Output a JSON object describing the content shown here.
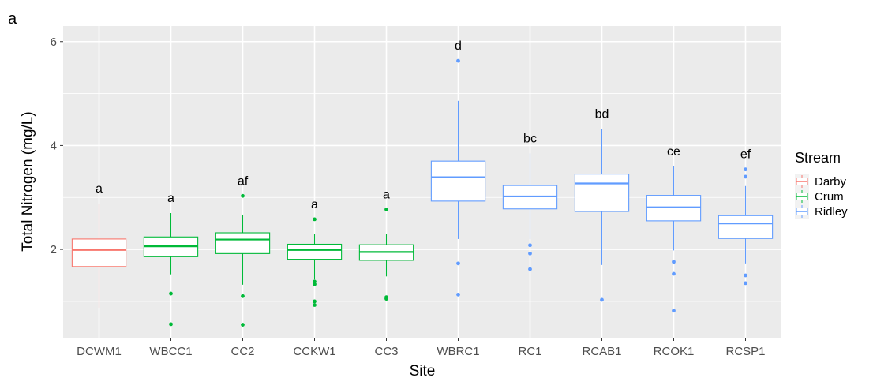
{
  "chart_data": {
    "type": "boxplot",
    "panel_tag": "a",
    "xlabel": "Site",
    "ylabel": "Total Nitrogen (mg/L)",
    "ylim": [
      0.3,
      6.3
    ],
    "yticks": [
      2,
      4,
      6
    ],
    "grid": true,
    "legend": {
      "title": "Stream",
      "placement": "right",
      "entries": [
        {
          "name": "Darby",
          "color": "#F8766D"
        },
        {
          "name": "Crum",
          "color": "#00BA38"
        },
        {
          "name": "Ridley",
          "color": "#619CFF"
        }
      ]
    },
    "categories": [
      "DCWM1",
      "WBCC1",
      "CC2",
      "CCKW1",
      "CC3",
      "WBRC1",
      "RC1",
      "RCAB1",
      "RCOK1",
      "RCSP1"
    ],
    "boxes": [
      {
        "site": "DCWM1",
        "stream": "Darby",
        "min": 0.88,
        "q1": 1.67,
        "median": 1.99,
        "q3": 2.2,
        "max": 2.88,
        "outliers": [],
        "letter": "a"
      },
      {
        "site": "WBCC1",
        "stream": "Crum",
        "min": 1.52,
        "q1": 1.86,
        "median": 2.06,
        "q3": 2.24,
        "max": 2.7,
        "outliers": [
          1.15,
          0.56
        ],
        "letter": "a"
      },
      {
        "site": "CC2",
        "stream": "Crum",
        "min": 1.32,
        "q1": 1.92,
        "median": 2.19,
        "q3": 2.32,
        "max": 2.67,
        "outliers": [
          3.03,
          1.1,
          0.55
        ],
        "letter": "af"
      },
      {
        "site": "CCKW1",
        "stream": "Crum",
        "min": 1.42,
        "q1": 1.81,
        "median": 1.99,
        "q3": 2.1,
        "max": 2.3,
        "outliers": [
          2.58,
          1.38,
          1.33,
          1.0,
          0.93
        ],
        "letter": "a"
      },
      {
        "site": "CC3",
        "stream": "Crum",
        "min": 1.48,
        "q1": 1.79,
        "median": 1.95,
        "q3": 2.09,
        "max": 2.3,
        "outliers": [
          2.77,
          1.08,
          1.05
        ],
        "letter": "a"
      },
      {
        "site": "WBRC1",
        "stream": "Ridley",
        "min": 2.2,
        "q1": 2.93,
        "median": 3.39,
        "q3": 3.7,
        "max": 4.86,
        "outliers": [
          5.63,
          1.73,
          1.13
        ],
        "letter": "d"
      },
      {
        "site": "RC1",
        "stream": "Ridley",
        "min": 2.2,
        "q1": 2.78,
        "median": 3.02,
        "q3": 3.23,
        "max": 3.85,
        "outliers": [
          2.08,
          1.92,
          1.62
        ],
        "letter": "bc"
      },
      {
        "site": "RCAB1",
        "stream": "Ridley",
        "min": 1.7,
        "q1": 2.73,
        "median": 3.27,
        "q3": 3.45,
        "max": 4.32,
        "outliers": [
          1.03
        ],
        "letter": "bd"
      },
      {
        "site": "RCOK1",
        "stream": "Ridley",
        "min": 1.98,
        "q1": 2.55,
        "median": 2.81,
        "q3": 3.04,
        "max": 3.6,
        "outliers": [
          1.76,
          1.53,
          0.82
        ],
        "letter": "ce"
      },
      {
        "site": "RCSP1",
        "stream": "Ridley",
        "min": 1.73,
        "q1": 2.21,
        "median": 2.5,
        "q3": 2.65,
        "max": 3.22,
        "outliers": [
          3.54,
          3.4,
          1.5,
          1.35
        ],
        "letter": "ef"
      }
    ]
  }
}
